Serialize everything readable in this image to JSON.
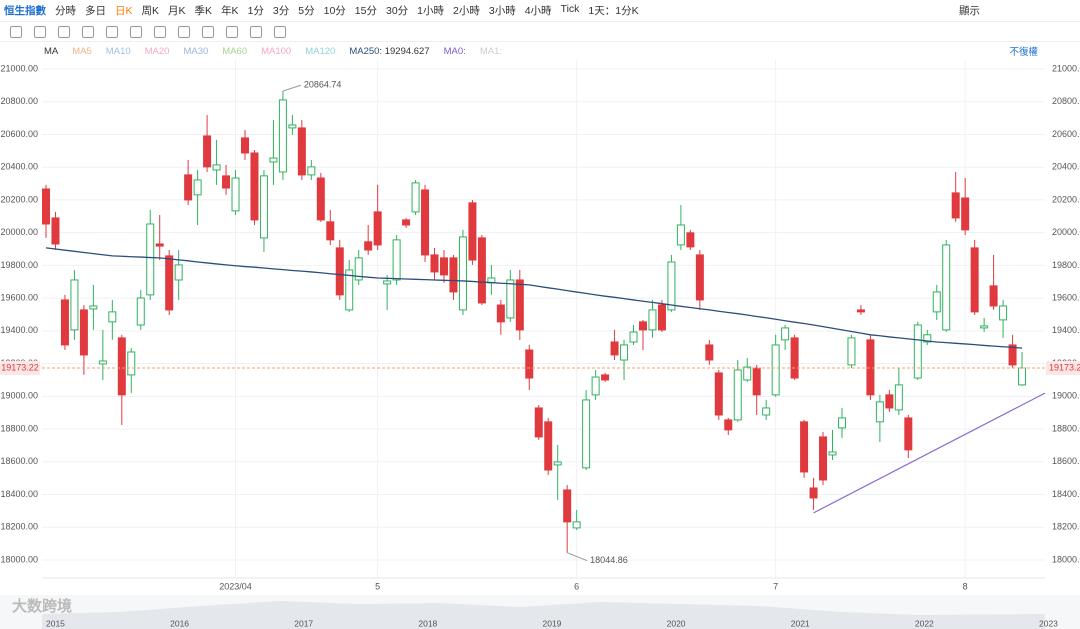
{
  "toolbar": {
    "symbol": "恒生指數",
    "periods": [
      "分時",
      "多日",
      "日K",
      "周K",
      "月K",
      "季K",
      "年K",
      "1分",
      "3分",
      "5分",
      "10分",
      "15分",
      "30分",
      "1小時",
      "2小時",
      "3小時",
      "4小時",
      "Tick"
    ],
    "active_period": "日K",
    "period_select": "1天：1分K",
    "display": "顯示"
  },
  "indicator_bar": {
    "name": "MA",
    "items": [
      {
        "name": "MA5",
        "color": "#f4b183"
      },
      {
        "name": "MA10",
        "color": "#9cc3e6"
      },
      {
        "name": "MA20",
        "color": "#f4a6c6"
      },
      {
        "name": "MA30",
        "color": "#9fb3d9"
      },
      {
        "name": "MA60",
        "color": "#a9d18e"
      },
      {
        "name": "MA100",
        "color": "#f4a6c6"
      },
      {
        "name": "MA120",
        "color": "#8fd3d8"
      }
    ],
    "ma0": "MA0:",
    "ma1": "MA1:",
    "adjust": "不復權"
  },
  "chart_data": {
    "type": "candlestick",
    "up_color": "#2fb35e",
    "down_color": "#e0393e",
    "grid": true,
    "categories": [
      null,
      null,
      null,
      null,
      null,
      null,
      null,
      null,
      null,
      null,
      null,
      null,
      null,
      null,
      null,
      null,
      null,
      null,
      null,
      null,
      "2023/04",
      null,
      null,
      null,
      null,
      null,
      null,
      null,
      null,
      null,
      null,
      null,
      null,
      null,
      null,
      "5",
      null,
      null,
      null,
      null,
      null,
      null,
      null,
      null,
      null,
      null,
      null,
      null,
      null,
      null,
      null,
      null,
      null,
      null,
      null,
      null,
      "6",
      null,
      null,
      null,
      null,
      null,
      null,
      null,
      null,
      null,
      null,
      null,
      null,
      null,
      null,
      null,
      null,
      null,
      null,
      null,
      null,
      "7",
      null,
      null,
      null,
      null,
      null,
      null,
      null,
      null,
      null,
      null,
      null,
      null,
      null,
      null,
      null,
      null,
      null,
      null,
      null,
      "8",
      null,
      null,
      null,
      null,
      null,
      null
    ],
    "open": [
      20267,
      20090,
      19589,
      19406,
      19528,
      19534,
      19198,
      19455,
      19357,
      19131,
      19436,
      19620,
      19931,
      19858,
      19711,
      20353,
      20231,
      20591,
      20383,
      20347,
      20133,
      20579,
      20487,
      19968,
      20432,
      20371,
      20640,
      20640,
      20353,
      20334,
      20066,
      19907,
      19528,
      19711,
      19944,
      20127,
      19687,
      19711,
      20078,
      20127,
      20261,
      19864,
      19846,
      19846,
      19528,
      20182,
      19968,
      19693,
      19558,
      19479,
      19711,
      19283,
      18929,
      18844,
      18581,
      18428,
      18196,
      18563,
      19009,
      19131,
      19332,
      19222,
      19332,
      19455,
      19406,
      19558,
      19528,
      19925,
      19999,
      19864,
      19314,
      19143,
      18856,
      18856,
      19100,
      19173,
      18886,
      19009,
      19345,
      19357,
      18844,
      18440,
      18752,
      18642,
      18807,
      19192,
      19528,
      19345,
      18844,
      19009,
      18917,
      18868,
      19112,
      19332,
      19516,
      19406,
      20243,
      20212,
      19907,
      19418,
      19675,
      19467,
      19314,
      19070
    ],
    "high": [
      20292,
      20127,
      19620,
      19772,
      19558,
      19681,
      19406,
      19589,
      19376,
      19295,
      19650,
      20139,
      20108,
      19894,
      19894,
      20444,
      20383,
      20719,
      20567,
      20414,
      20383,
      20628,
      20505,
      20383,
      20689,
      20864.74,
      20719,
      20689,
      20444,
      20365,
      20139,
      19956,
      19833,
      19894,
      20047,
      20292,
      19742,
      19986,
      20090,
      20322,
      20292,
      19907,
      19894,
      19864,
      20017,
      20200,
      19986,
      19803,
      19589,
      19772,
      19772,
      19314,
      18947,
      18868,
      18703,
      18458,
      18306,
      19039,
      19161,
      19143,
      19406,
      19345,
      19436,
      19467,
      19589,
      19589,
      19864,
      20169,
      20017,
      19894,
      19345,
      19161,
      18868,
      19222,
      19234,
      19192,
      18978,
      19376,
      19436,
      19376,
      18856,
      18502,
      18783,
      18795,
      18929,
      19376,
      19558,
      19376,
      19009,
      19039,
      19173,
      18886,
      19455,
      19406,
      19681,
      19956,
      20371,
      20334,
      19956,
      19479,
      19864,
      19589,
      19376,
      19271
    ],
    "low": [
      19968,
      19894,
      19283,
      19345,
      19131,
      19406,
      19100,
      19345,
      18825,
      19021,
      19406,
      19589,
      19833,
      19497,
      19589,
      20169,
      20047,
      20371,
      20292,
      20231,
      20108,
      20444,
      20047,
      19882,
      20292,
      20322,
      20597,
      20322,
      20322,
      20066,
      19925,
      19589,
      19516,
      19681,
      19864,
      19894,
      19528,
      19681,
      20029,
      20108,
      19821,
      19711,
      19693,
      19589,
      19497,
      19803,
      19558,
      19620,
      19376,
      19455,
      19345,
      19039,
      18734,
      18520,
      18367,
      18044.86,
      18184,
      18550,
      18978,
      19088,
      19222,
      19100,
      19314,
      19283,
      19357,
      19393,
      19516,
      19894,
      19894,
      19528,
      19192,
      18856,
      18764,
      18844,
      19088,
      18886,
      18856,
      18997,
      19283,
      19100,
      18502,
      18306,
      18458,
      18611,
      18746,
      19173,
      19497,
      18978,
      18721,
      18905,
      18886,
      18623,
      19100,
      19314,
      19467,
      19393,
      20066,
      19986,
      19497,
      19393,
      19528,
      19357,
      19173,
      19064
    ],
    "close": [
      20053,
      19931,
      19314,
      19711,
      19253,
      19552,
      19216,
      19516,
      19009,
      19271,
      19601,
      20053,
      19918,
      19528,
      19803,
      20200,
      20322,
      20402,
      20414,
      20273,
      20334,
      20487,
      20078,
      20347,
      20456,
      20811,
      20658,
      20353,
      20402,
      20078,
      19956,
      19620,
      19772,
      19846,
      19894,
      19925,
      19705,
      19956,
      20047,
      20304,
      19864,
      19760,
      19742,
      19638,
      19974,
      19833,
      19571,
      19723,
      19455,
      19711,
      19406,
      19112,
      18752,
      18550,
      18599,
      18233,
      18233,
      18978,
      19118,
      19100,
      19253,
      19314,
      19393,
      19406,
      19528,
      19406,
      19821,
      20047,
      19913,
      19589,
      19222,
      18886,
      18795,
      19161,
      19179,
      19009,
      18929,
      19314,
      19418,
      19112,
      18538,
      18379,
      18489,
      18660,
      18868,
      19357,
      19516,
      19009,
      18966,
      18929,
      19070,
      18673,
      19436,
      19376,
      19638,
      19925,
      20090,
      20017,
      19516,
      19430,
      19552,
      19552,
      19192,
      19173.22
    ],
    "series": [
      {
        "name": "MA250:",
        "color": "#2b4e7a",
        "values": [
          19907,
          19900,
          19893,
          19886,
          19879,
          19872,
          19865,
          19858,
          19856,
          19853,
          19851,
          19848,
          19846,
          19840,
          19834,
          19828,
          19821,
          19815,
          19809,
          19803,
          19798,
          19793,
          19789,
          19784,
          19779,
          19774,
          19769,
          19765,
          19760,
          19755,
          19749,
          19744,
          19739,
          19733,
          19728,
          19723,
          19721,
          19719,
          19717,
          19715,
          19713,
          19711,
          19709,
          19707,
          19705,
          19702,
          19698,
          19695,
          19691,
          19688,
          19684,
          19681,
          19672,
          19663,
          19655,
          19646,
          19637,
          19629,
          19620,
          19612,
          19605,
          19597,
          19589,
          19581,
          19574,
          19566,
          19558,
          19550,
          19543,
          19535,
          19528,
          19520,
          19512,
          19505,
          19497,
          19488,
          19480,
          19471,
          19462,
          19453,
          19445,
          19436,
          19426,
          19416,
          19406,
          19396,
          19386,
          19376,
          19370,
          19363,
          19357,
          19351,
          19345,
          19338,
          19332,
          19328,
          19324,
          19320,
          19316,
          19311,
          19307,
          19303,
          19299,
          19294.627
        ]
      }
    ],
    "trendline": {
      "color": "#8a6bd1",
      "points": [
        {
          "category": 81,
          "value": 18288
        },
        {
          "category": 103,
          "value": 18947
        }
      ]
    },
    "price_line_color": "#f0a070",
    "ylim": [
      17890,
      21055
    ],
    "yticks": [
      {
        "value": 18000,
        "label": "18000.00"
      },
      {
        "value": 18200,
        "label": "18200.00"
      },
      {
        "value": 18400,
        "label": "18400.00"
      },
      {
        "value": 18600,
        "label": "18600.00"
      },
      {
        "value": 18800,
        "label": "18800.00"
      },
      {
        "value": 19000,
        "label": "19000.00"
      },
      {
        "value": 19200,
        "label": "19200.00"
      },
      {
        "value": 19400,
        "label": "19400.00"
      },
      {
        "value": 19600,
        "label": "19600.00"
      },
      {
        "value": 19800,
        "label": "19800.00"
      },
      {
        "value": 20000,
        "label": "20000.00"
      },
      {
        "value": 20200,
        "label": "20200.00"
      },
      {
        "value": 20400,
        "label": "20400.00"
      },
      {
        "value": 20600,
        "label": "20600.00"
      },
      {
        "value": 20800,
        "label": "20800.00"
      },
      {
        "value": 21000,
        "label": "21000.00"
      }
    ]
  },
  "navigator": {
    "years": [
      "2015",
      "2016",
      "2017",
      "2018",
      "2019",
      "2020",
      "2021",
      "2022",
      "2023"
    ]
  },
  "watermark": "大数跨境"
}
